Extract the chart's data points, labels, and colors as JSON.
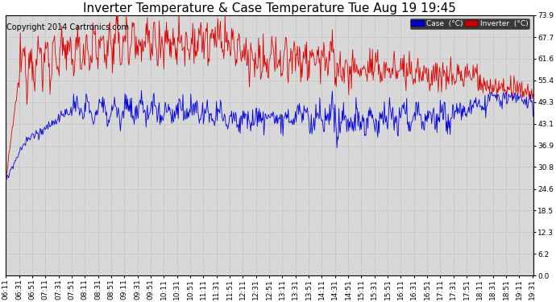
{
  "title": "Inverter Temperature & Case Temperature Tue Aug 19 19:45",
  "copyright": "Copyright 2014 Cartronics.com",
  "yticks": [
    0.0,
    6.2,
    12.3,
    18.5,
    24.6,
    30.8,
    36.9,
    43.1,
    49.3,
    55.4,
    61.6,
    67.7,
    73.9
  ],
  "ymin": 0.0,
  "ymax": 73.9,
  "case_color": "#0000dd",
  "inverter_color": "#dd0000",
  "bg_color": "#ffffff",
  "plot_bg_color": "#d8d8d8",
  "grid_color": "#bbbbbb",
  "title_fontsize": 11,
  "copyright_fontsize": 7,
  "tick_fontsize": 6.5,
  "legend_case_bg": "#0000cc",
  "legend_inv_bg": "#cc0000"
}
